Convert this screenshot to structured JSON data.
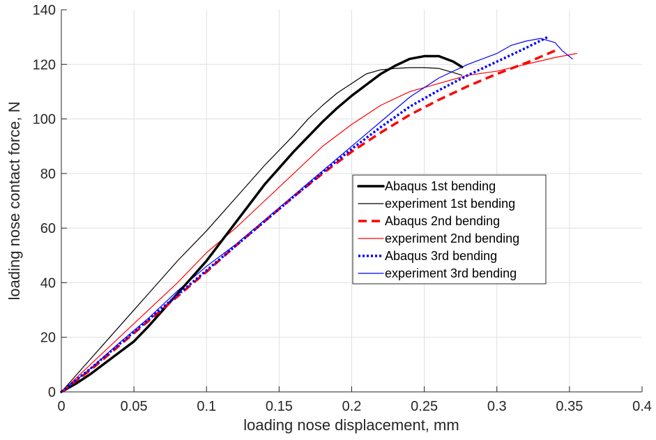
{
  "chart_data": {
    "type": "line",
    "title": "",
    "xlabel": "loading nose displacement, mm",
    "ylabel": "loading nose contact force, N",
    "xlim": [
      0,
      0.4
    ],
    "ylim": [
      0,
      140
    ],
    "xticks": [
      0,
      0.05,
      0.1,
      0.15,
      0.2,
      0.25,
      0.3,
      0.35,
      0.4
    ],
    "xtick_labels": [
      "0",
      "0.05",
      "0.1",
      "0.15",
      "0.2",
      "0.25",
      "0.3",
      "0.35",
      "0.4"
    ],
    "yticks": [
      0,
      20,
      40,
      60,
      80,
      100,
      120,
      140
    ],
    "ytick_labels": [
      "0",
      "20",
      "40",
      "60",
      "80",
      "100",
      "120",
      "140"
    ],
    "grid": true,
    "legend_position": "center-right",
    "series": [
      {
        "name": "Abaqus 1st bending",
        "color": "#000000",
        "style": "solid-thick",
        "x": [
          0,
          0.01,
          0.02,
          0.03,
          0.04,
          0.05,
          0.06,
          0.07,
          0.08,
          0.09,
          0.1,
          0.11,
          0.12,
          0.13,
          0.14,
          0.15,
          0.16,
          0.17,
          0.18,
          0.19,
          0.2,
          0.21,
          0.22,
          0.23,
          0.24,
          0.25,
          0.26,
          0.27,
          0.276
        ],
        "y": [
          0,
          3,
          6.5,
          10.5,
          14.5,
          18.5,
          24,
          30,
          36,
          42,
          48,
          55,
          62,
          69,
          76,
          82,
          88,
          93.5,
          99,
          104,
          108.5,
          112.5,
          116.5,
          119.5,
          122,
          123,
          123,
          121,
          119
        ]
      },
      {
        "name": "experiment 1st bending",
        "color": "#000000",
        "style": "solid-thin",
        "x": [
          0,
          0.01,
          0.02,
          0.03,
          0.04,
          0.05,
          0.06,
          0.07,
          0.08,
          0.09,
          0.1,
          0.11,
          0.12,
          0.13,
          0.14,
          0.15,
          0.16,
          0.17,
          0.18,
          0.19,
          0.2,
          0.21,
          0.22,
          0.23,
          0.24,
          0.25,
          0.26,
          0.27,
          0.276
        ],
        "y": [
          0,
          6,
          12,
          18,
          24,
          30,
          36,
          42,
          48,
          53.5,
          59,
          65,
          71,
          77,
          83,
          88.5,
          94,
          100,
          105,
          109.5,
          113,
          116.5,
          118,
          118.5,
          118.8,
          118.8,
          118.5,
          117,
          116
        ]
      },
      {
        "name": "Abaqus 2nd bending",
        "color": "#ff0000",
        "style": "dashed",
        "x": [
          0,
          0.02,
          0.04,
          0.06,
          0.08,
          0.1,
          0.12,
          0.14,
          0.16,
          0.18,
          0.2,
          0.22,
          0.24,
          0.26,
          0.28,
          0.3,
          0.32,
          0.34
        ],
        "y": [
          0,
          8,
          17,
          26,
          35,
          44,
          53.5,
          62.5,
          71.5,
          80,
          88,
          95,
          101.5,
          107,
          112,
          116.5,
          120.5,
          125
        ]
      },
      {
        "name": "experiment 2nd bending",
        "color": "#ff0000",
        "style": "solid-thin",
        "x": [
          0,
          0.02,
          0.04,
          0.06,
          0.08,
          0.1,
          0.12,
          0.14,
          0.16,
          0.18,
          0.2,
          0.22,
          0.24,
          0.26,
          0.28,
          0.3,
          0.32,
          0.34,
          0.355
        ],
        "y": [
          0,
          10,
          20,
          30,
          40,
          51,
          60,
          70,
          80,
          90,
          98,
          105,
          110,
          113,
          116,
          117.5,
          120,
          122.5,
          124
        ]
      },
      {
        "name": "Abaqus 3rd bending",
        "color": "#0000ff",
        "style": "dotted",
        "x": [
          0,
          0.02,
          0.04,
          0.06,
          0.08,
          0.1,
          0.12,
          0.14,
          0.16,
          0.18,
          0.2,
          0.22,
          0.24,
          0.26,
          0.28,
          0.3,
          0.32,
          0.335
        ],
        "y": [
          0,
          8.5,
          17.5,
          26.5,
          35.5,
          44.5,
          53.5,
          62.5,
          71.5,
          80.5,
          89,
          97,
          104.5,
          110.5,
          116,
          121,
          126,
          130
        ]
      },
      {
        "name": "experiment 3rd bending",
        "color": "#0000ff",
        "style": "solid-thin",
        "x": [
          0,
          0.02,
          0.04,
          0.06,
          0.08,
          0.1,
          0.12,
          0.14,
          0.16,
          0.18,
          0.2,
          0.22,
          0.24,
          0.26,
          0.28,
          0.3,
          0.31,
          0.32,
          0.33,
          0.34,
          0.345,
          0.352
        ],
        "y": [
          0,
          8.5,
          18,
          27,
          37,
          46,
          54,
          63,
          72,
          81,
          90,
          99,
          108,
          115,
          120,
          124,
          127,
          128.5,
          129.5,
          128,
          125,
          122
        ]
      }
    ]
  }
}
